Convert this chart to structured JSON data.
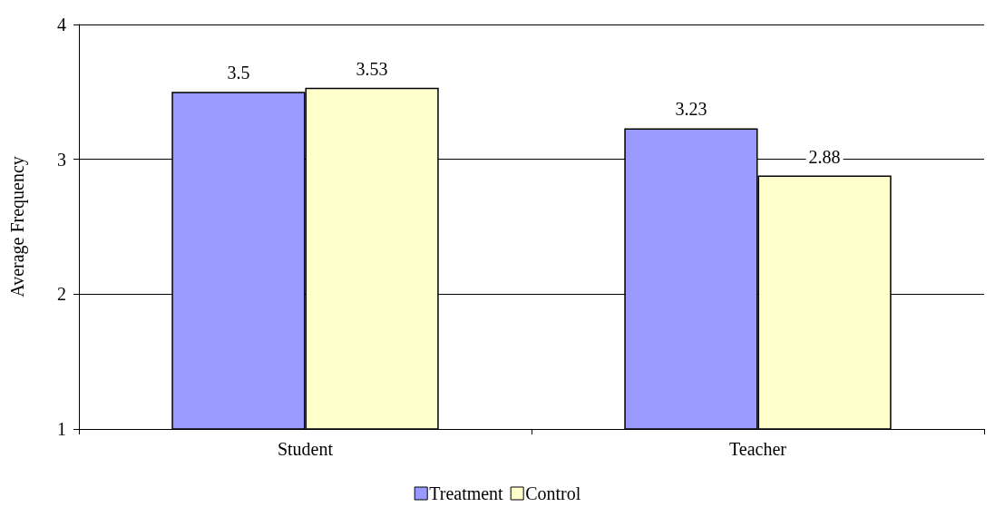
{
  "chart_data": {
    "type": "bar",
    "ylabel": "Average Frequency",
    "categories": [
      "Student",
      "Teacher"
    ],
    "series": [
      {
        "name": "Treatment",
        "color": "#9999ff",
        "values": [
          3.5,
          3.23
        ]
      },
      {
        "name": "Control",
        "color": "#ffffcc",
        "values": [
          3.53,
          2.88
        ]
      }
    ],
    "ylim": [
      1,
      4
    ],
    "yticks": [
      1,
      2,
      3,
      4
    ],
    "grid": "y",
    "legend": "bottom",
    "data_labels": true
  }
}
